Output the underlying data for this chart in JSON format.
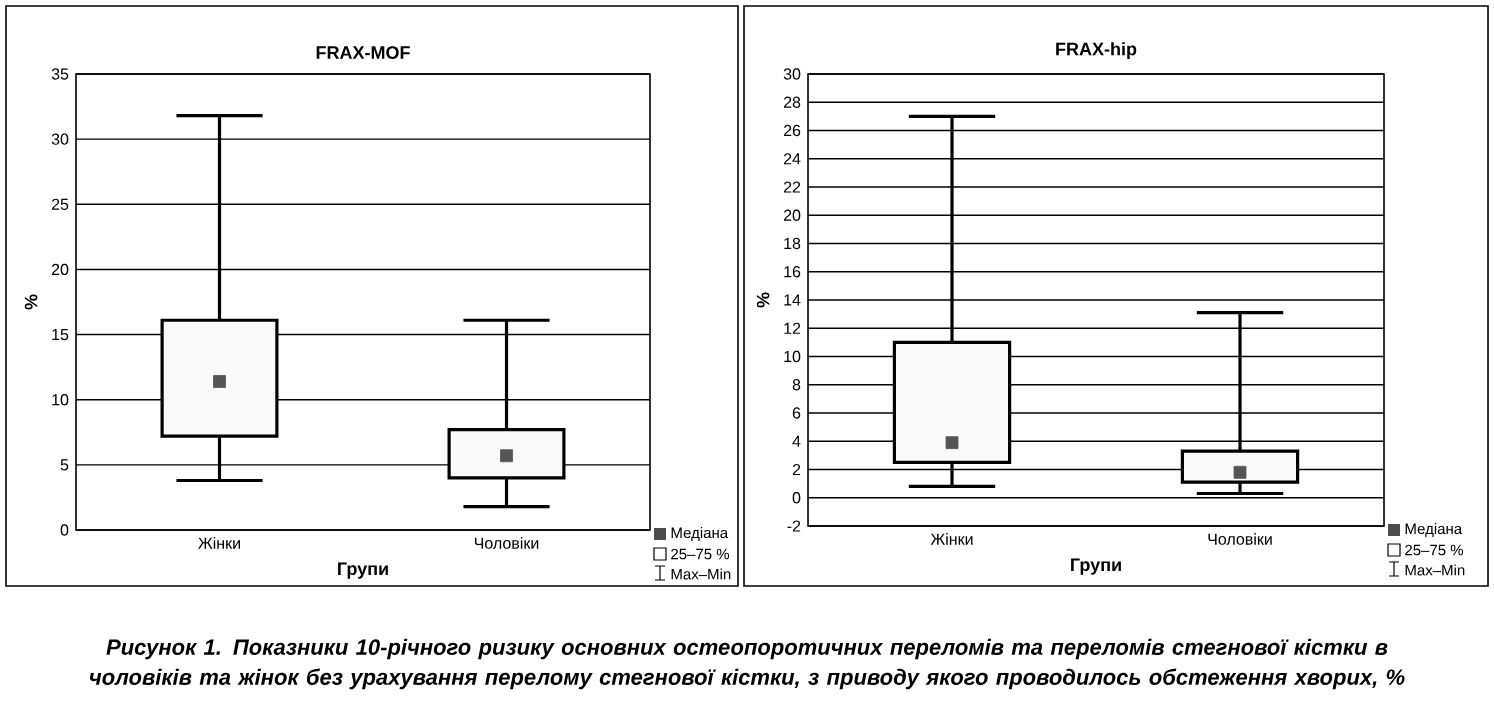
{
  "chart_data": [
    {
      "type": "box",
      "title": "FRAX-MOF",
      "xlabel": "Групи",
      "ylabel": "%",
      "categories": [
        "Жінки",
        "Чоловіки"
      ],
      "boxes": [
        {
          "low": 3.8,
          "q1": 7.2,
          "median": 11.4,
          "q3": 16.1,
          "high": 31.8
        },
        {
          "low": 1.8,
          "q1": 4.0,
          "median": 5.7,
          "q3": 7.7,
          "high": 16.1
        }
      ],
      "ylim": [
        0,
        35
      ],
      "yticks": [
        0,
        5,
        10,
        15,
        20,
        25,
        30,
        35
      ],
      "grid": "y",
      "marker": "square",
      "annotations": [
        "Медіана",
        "25–75 %",
        "Max–Min",
        "Рисунок 1. Показники 10-річного ризику основних остеопоротичних переломів та переломів стегнової кістки в чоловіків та жінок без урахування перелому стегнової кістки, з приводу якого проводилось обстеження хворих, %"
      ]
    },
    {
      "type": "box",
      "title": "FRAX-hip",
      "xlabel": "Групи",
      "ylabel": "%",
      "categories": [
        "Жінки",
        "Чоловіки"
      ],
      "boxes": [
        {
          "low": 0.8,
          "q1": 2.5,
          "median": 3.9,
          "q3": 11.0,
          "high": 27.0
        },
        {
          "low": 0.3,
          "q1": 1.1,
          "median": 1.8,
          "q3": 3.3,
          "high": 13.1
        }
      ],
      "ylim": [
        -2,
        30
      ],
      "yticks": [
        -2,
        0,
        2,
        4,
        6,
        8,
        10,
        12,
        14,
        16,
        18,
        20,
        22,
        24,
        26,
        28,
        30
      ],
      "grid": "y",
      "marker": "square",
      "annotations": [
        "Медіана",
        "25–75 %",
        "Max–Min"
      ]
    }
  ]
}
